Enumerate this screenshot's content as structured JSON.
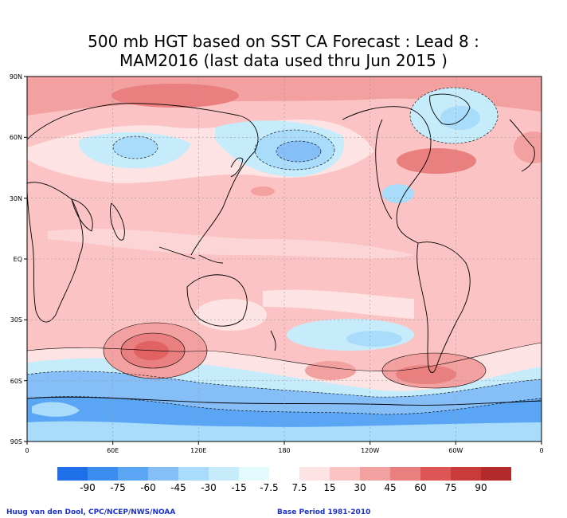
{
  "title": {
    "line1": "500 mb HGT based on SST CA Forecast : Lead 8 :",
    "line2": "MAM2016 (last data used thru Jun 2015 )"
  },
  "lat_labels": [
    "90N",
    "60N",
    "30N",
    "EQ",
    "30S",
    "60S",
    "90S"
  ],
  "lon_labels": [
    "0",
    "60E",
    "120E",
    "180",
    "120W",
    "60W",
    "0"
  ],
  "colorbar": {
    "labels": [
      "-90",
      "-75",
      "-60",
      "-45",
      "-30",
      "-15",
      "-7.5",
      "7.5",
      "15",
      "30",
      "45",
      "60",
      "75",
      "90"
    ],
    "colors": [
      "#1f6fe8",
      "#3c8df0",
      "#5aa6f4",
      "#86bff8",
      "#a8dcfa",
      "#c6ecfb",
      "#e4fbfd",
      "#ffffff",
      "#fde3e3",
      "#fbc3c3",
      "#f3a0a0",
      "#e97f7f",
      "#dd5555",
      "#c93a3a",
      "#b22a2a"
    ]
  },
  "credits": {
    "left": "Huug van den Dool, CPC/NCEP/NWS/NOAA",
    "right": "Base Period 1981-2010"
  }
}
